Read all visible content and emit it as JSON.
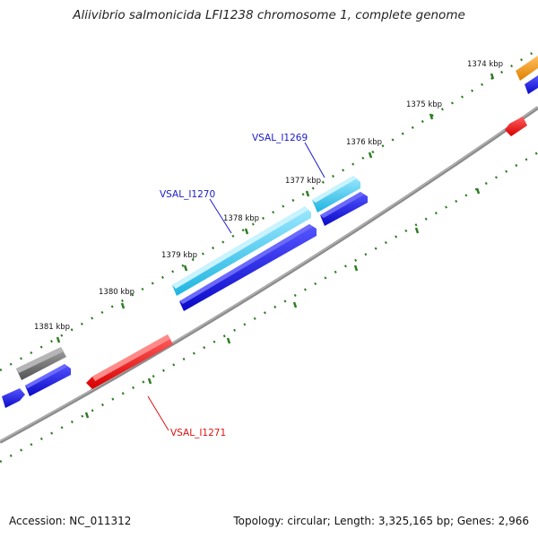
{
  "title": "Aliivibrio salmonicida LFI1238 chromosome 1, complete genome",
  "footer": {
    "accession": "Accession: NC_011312",
    "summary": "Topology: circular; Length: 3,325,165 bp; Genes: 2,966"
  },
  "ticks": [
    "1374 kbp",
    "1375 kbp",
    "1376 kbp",
    "1377 kbp",
    "1378 kbp",
    "1379 kbp",
    "1380 kbp",
    "1381 kbp"
  ],
  "gene_labels": {
    "g1269": "VSAL_I1269",
    "g1270": "VSAL_I1270",
    "g1271": "VSAL_I1271"
  },
  "colors": {
    "backbone": "#8c8c8c",
    "tick": "#2e7d23",
    "cyan": "#33ccee",
    "blue": "#1a1ae6",
    "red": "#ee1111",
    "gray": "#6a6a6a",
    "orange": "#f0900f",
    "label_blue": "#1a1acc",
    "label_red": "#dd1111"
  }
}
